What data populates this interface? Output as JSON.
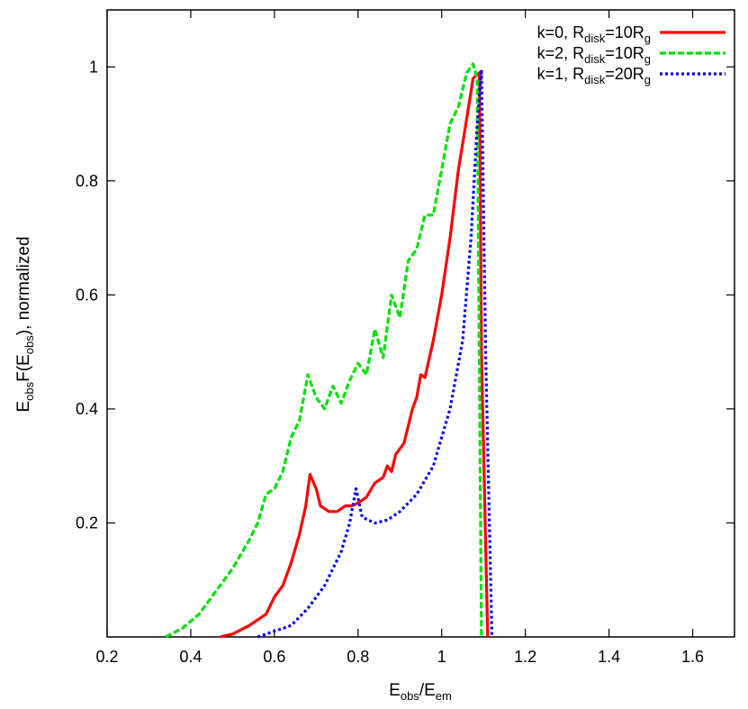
{
  "chart_data": {
    "type": "line",
    "xlabel": {
      "main": "E",
      "sub1": "obs",
      "mid": "/E",
      "sub2": "em"
    },
    "ylabel": {
      "p1": "E",
      "s1": "obs",
      "p2": "F(E",
      "s2": "obs",
      "p3": "), normalized"
    },
    "xlim": [
      0.2,
      1.7
    ],
    "ylim": [
      0.0,
      1.1
    ],
    "x_ticks": [
      0.2,
      0.4,
      0.6,
      0.8,
      1.0,
      1.2,
      1.4,
      1.6
    ],
    "x_tick_labels": [
      "0.2",
      "0.4",
      "0.6",
      "0.8",
      "1",
      "1.2",
      "1.4",
      "1.6"
    ],
    "y_ticks": [
      0.2,
      0.4,
      0.6,
      0.8,
      1.0
    ],
    "y_tick_labels": [
      "0.2",
      "0.4",
      "0.6",
      "0.8",
      "1"
    ],
    "legend_position": "top-right",
    "series": [
      {
        "name": "k=0, R_disk=10R_g",
        "legend": {
          "pre": "k=0, R",
          "sub1": "disk",
          "mid": "=10R",
          "sub2": "g"
        },
        "color": "#ff0000",
        "style": "solid",
        "points": [
          [
            0.47,
            0.0
          ],
          [
            0.5,
            0.005
          ],
          [
            0.54,
            0.02
          ],
          [
            0.58,
            0.04
          ],
          [
            0.6,
            0.07
          ],
          [
            0.62,
            0.09
          ],
          [
            0.64,
            0.13
          ],
          [
            0.66,
            0.18
          ],
          [
            0.675,
            0.23
          ],
          [
            0.685,
            0.285
          ],
          [
            0.7,
            0.26
          ],
          [
            0.71,
            0.23
          ],
          [
            0.73,
            0.22
          ],
          [
            0.75,
            0.22
          ],
          [
            0.77,
            0.23
          ],
          [
            0.785,
            0.23
          ],
          [
            0.8,
            0.235
          ],
          [
            0.82,
            0.245
          ],
          [
            0.84,
            0.27
          ],
          [
            0.86,
            0.28
          ],
          [
            0.87,
            0.3
          ],
          [
            0.88,
            0.29
          ],
          [
            0.89,
            0.32
          ],
          [
            0.91,
            0.34
          ],
          [
            0.93,
            0.4
          ],
          [
            0.94,
            0.42
          ],
          [
            0.95,
            0.46
          ],
          [
            0.96,
            0.455
          ],
          [
            0.98,
            0.52
          ],
          [
            1.0,
            0.6
          ],
          [
            1.02,
            0.7
          ],
          [
            1.04,
            0.82
          ],
          [
            1.06,
            0.91
          ],
          [
            1.075,
            0.98
          ],
          [
            1.09,
            0.99
          ],
          [
            1.095,
            0.5
          ],
          [
            1.11,
            0.0
          ]
        ]
      },
      {
        "name": "k=2, R_disk=10R_g",
        "legend": {
          "pre": "k=2, R",
          "sub1": "disk",
          "mid": "=10R",
          "sub2": "g"
        },
        "color": "#00e000",
        "style": "dashed",
        "points": [
          [
            0.34,
            0.0
          ],
          [
            0.38,
            0.015
          ],
          [
            0.42,
            0.04
          ],
          [
            0.46,
            0.08
          ],
          [
            0.5,
            0.12
          ],
          [
            0.54,
            0.17
          ],
          [
            0.56,
            0.2
          ],
          [
            0.58,
            0.25
          ],
          [
            0.6,
            0.26
          ],
          [
            0.62,
            0.29
          ],
          [
            0.64,
            0.35
          ],
          [
            0.66,
            0.38
          ],
          [
            0.68,
            0.46
          ],
          [
            0.7,
            0.42
          ],
          [
            0.72,
            0.4
          ],
          [
            0.74,
            0.44
          ],
          [
            0.76,
            0.41
          ],
          [
            0.78,
            0.45
          ],
          [
            0.8,
            0.48
          ],
          [
            0.82,
            0.46
          ],
          [
            0.84,
            0.54
          ],
          [
            0.86,
            0.49
          ],
          [
            0.88,
            0.6
          ],
          [
            0.9,
            0.56
          ],
          [
            0.92,
            0.66
          ],
          [
            0.94,
            0.68
          ],
          [
            0.96,
            0.74
          ],
          [
            0.98,
            0.74
          ],
          [
            1.0,
            0.82
          ],
          [
            1.02,
            0.9
          ],
          [
            1.04,
            0.93
          ],
          [
            1.06,
            0.99
          ],
          [
            1.075,
            1.005
          ],
          [
            1.085,
            0.98
          ],
          [
            1.095,
            0.0
          ]
        ]
      },
      {
        "name": "k=1, R_disk=20R_g",
        "legend": {
          "pre": "k=1, R",
          "sub1": "disk",
          "mid": "=20R",
          "sub2": "g"
        },
        "color": "#0000ee",
        "style": "dotted",
        "points": [
          [
            0.56,
            0.0
          ],
          [
            0.6,
            0.01
          ],
          [
            0.64,
            0.02
          ],
          [
            0.68,
            0.05
          ],
          [
            0.72,
            0.09
          ],
          [
            0.76,
            0.15
          ],
          [
            0.78,
            0.2
          ],
          [
            0.795,
            0.26
          ],
          [
            0.81,
            0.21
          ],
          [
            0.84,
            0.2
          ],
          [
            0.87,
            0.205
          ],
          [
            0.9,
            0.22
          ],
          [
            0.94,
            0.25
          ],
          [
            0.98,
            0.3
          ],
          [
            1.02,
            0.4
          ],
          [
            1.05,
            0.52
          ],
          [
            1.07,
            0.7
          ],
          [
            1.085,
            0.9
          ],
          [
            1.095,
            0.995
          ],
          [
            1.105,
            0.5
          ],
          [
            1.12,
            0.0
          ]
        ]
      }
    ]
  }
}
